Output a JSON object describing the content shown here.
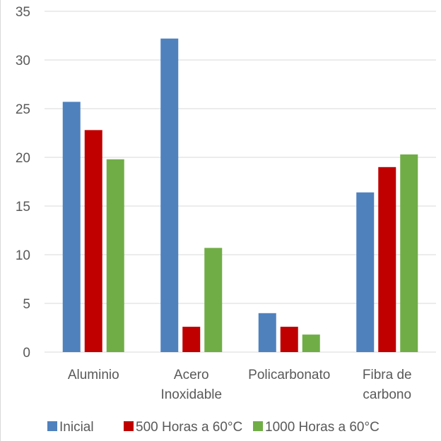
{
  "chart_data": {
    "type": "bar",
    "title": "",
    "xlabel": "",
    "ylabel": "",
    "ylim": [
      0,
      35
    ],
    "yticks": [
      0,
      5,
      10,
      15,
      20,
      25,
      30,
      35
    ],
    "grid": true,
    "legend_position": "bottom",
    "categories": [
      [
        "Aluminio"
      ],
      [
        "Acero",
        "Inoxidable"
      ],
      [
        "Policarbonato"
      ],
      [
        "Fibra de",
        "carbono"
      ]
    ],
    "series": [
      {
        "name": "Inicial",
        "color": "#4f81bd",
        "values": [
          25.7,
          32.2,
          4.0,
          16.4
        ]
      },
      {
        "name": "500 Horas a 60°C",
        "color": "#c00000",
        "values": [
          22.8,
          2.6,
          2.6,
          19.0
        ]
      },
      {
        "name": "1000 Horas a 60°C",
        "color": "#70ad47",
        "values": [
          19.8,
          10.7,
          1.8,
          20.3
        ]
      }
    ]
  }
}
